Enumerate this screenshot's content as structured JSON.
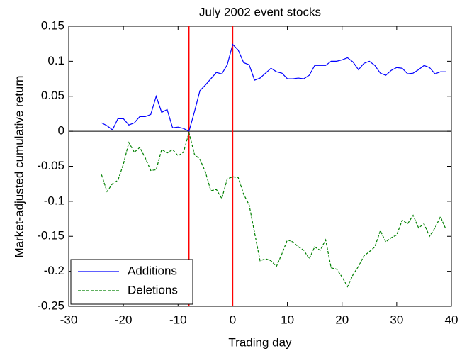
{
  "chart_data": {
    "type": "line",
    "title": "July 2002 event stocks",
    "x_label": "Trading day",
    "y_label": "Market-adjusted cumulative return",
    "x": [
      -24,
      -23,
      -22,
      -21,
      -20,
      -19,
      -18,
      -17,
      -16,
      -15,
      -14,
      -13,
      -12,
      -11,
      -10,
      -9,
      -8,
      -7,
      -6,
      -5,
      -4,
      -3,
      -2,
      -1,
      0,
      1,
      2,
      3,
      4,
      5,
      6,
      7,
      8,
      9,
      10,
      11,
      12,
      13,
      14,
      15,
      16,
      17,
      18,
      19,
      20,
      21,
      22,
      23,
      24,
      25,
      26,
      27,
      28,
      29,
      30,
      31,
      32,
      33,
      34,
      35,
      36,
      37,
      38,
      39
    ],
    "series": [
      {
        "name": "Additions",
        "color": "#0000ff",
        "linestyle": "solid",
        "values": [
          0.012,
          0.008,
          0.002,
          0.018,
          0.018,
          0.009,
          0.012,
          0.021,
          0.021,
          0.024,
          0.05,
          0.027,
          0.031,
          0.005,
          0.006,
          0.004,
          0.0,
          0.028,
          0.058,
          0.066,
          0.075,
          0.084,
          0.082,
          0.095,
          0.124,
          0.116,
          0.098,
          0.095,
          0.073,
          0.076,
          0.083,
          0.09,
          0.085,
          0.083,
          0.075,
          0.075,
          0.076,
          0.075,
          0.08,
          0.094,
          0.094,
          0.094,
          0.1,
          0.1,
          0.102,
          0.105,
          0.099,
          0.088,
          0.097,
          0.1,
          0.094,
          0.083,
          0.08,
          0.087,
          0.091,
          0.09,
          0.082,
          0.083,
          0.088,
          0.094,
          0.091,
          0.082,
          0.085,
          0.085
        ]
      },
      {
        "name": "Deletions",
        "color": "#008000",
        "linestyle": "dashed",
        "values": [
          -0.062,
          -0.086,
          -0.075,
          -0.07,
          -0.047,
          -0.016,
          -0.03,
          -0.023,
          -0.038,
          -0.056,
          -0.055,
          -0.026,
          -0.031,
          -0.026,
          -0.035,
          -0.03,
          -0.002,
          -0.033,
          -0.04,
          -0.058,
          -0.085,
          -0.083,
          -0.096,
          -0.068,
          -0.065,
          -0.066,
          -0.09,
          -0.105,
          -0.145,
          -0.185,
          -0.182,
          -0.185,
          -0.193,
          -0.175,
          -0.155,
          -0.158,
          -0.165,
          -0.17,
          -0.182,
          -0.165,
          -0.17,
          -0.155,
          -0.195,
          -0.197,
          -0.208,
          -0.222,
          -0.205,
          -0.193,
          -0.178,
          -0.172,
          -0.165,
          -0.142,
          -0.158,
          -0.152,
          -0.148,
          -0.127,
          -0.132,
          -0.12,
          -0.138,
          -0.132,
          -0.15,
          -0.138,
          -0.122,
          -0.14
        ]
      }
    ],
    "xlim": [
      -30,
      40
    ],
    "xticks": [
      -30,
      -20,
      -10,
      0,
      10,
      20,
      30,
      40
    ],
    "ylim": [
      -0.25,
      0.15
    ],
    "yticks": [
      -0.25,
      -0.2,
      -0.15,
      -0.1,
      -0.05,
      0,
      0.05,
      0.1,
      0.15
    ],
    "vlines": [
      -8,
      0
    ],
    "vline_color": "#ff0000",
    "hline": 0,
    "hline_color": "#000000",
    "grid": false,
    "legend": "lower left"
  }
}
